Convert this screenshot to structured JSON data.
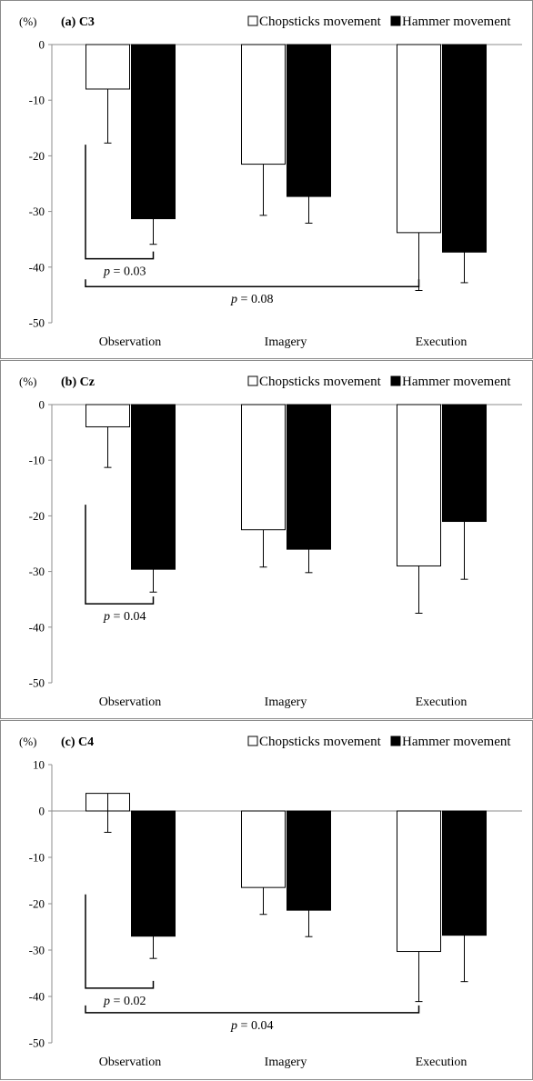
{
  "chart_data": [
    {
      "type": "bar",
      "title": "(a) C3",
      "ylabel": "(%)",
      "ylim": [
        -50,
        0
      ],
      "yticks": [
        0,
        -10,
        -20,
        -30,
        -40,
        -50
      ],
      "categories": [
        "Observation",
        "Imagery",
        "Execution"
      ],
      "series": [
        {
          "name": "Chopsticks movement",
          "color": "#ffffff",
          "values": [
            -8,
            -21.5,
            -33.8
          ],
          "error": [
            9.7,
            9.2,
            10.4
          ]
        },
        {
          "name": "Hammer movement",
          "color": "#000000",
          "values": [
            -31.3,
            -27.3,
            -37.3
          ],
          "error": [
            4.6,
            4.8,
            5.5
          ]
        }
      ],
      "grid": false,
      "legend": "top-right",
      "annotations": [
        {
          "label": "p",
          "text": "= 0.03",
          "from": "Observation",
          "to": "Observation",
          "y": -38.5
        },
        {
          "label": "p",
          "text": "= 0.08",
          "from": "Observation",
          "to": "Execution",
          "y": -43.5
        }
      ]
    },
    {
      "type": "bar",
      "title": "(b) Cz",
      "ylabel": "(%)",
      "ylim": [
        -50,
        0
      ],
      "yticks": [
        0,
        -10,
        -20,
        -30,
        -40,
        -50
      ],
      "categories": [
        "Observation",
        "Imagery",
        "Execution"
      ],
      "series": [
        {
          "name": "Chopsticks movement",
          "color": "#ffffff",
          "values": [
            -4,
            -22.5,
            -29
          ],
          "error": [
            7.3,
            6.7,
            8.5
          ]
        },
        {
          "name": "Hammer movement",
          "color": "#000000",
          "values": [
            -29.6,
            -26,
            -21
          ],
          "error": [
            4.1,
            4.2,
            10.4
          ]
        }
      ],
      "grid": false,
      "legend": "top-right",
      "annotations": [
        {
          "label": "p",
          "text": "= 0.04",
          "from": "Observation",
          "to": "Observation",
          "y": -35.8
        }
      ]
    },
    {
      "type": "bar",
      "title": "(c) C4",
      "ylabel": "(%)",
      "ylim": [
        -50,
        10
      ],
      "yticks": [
        10,
        0,
        -10,
        -20,
        -30,
        -40,
        -50
      ],
      "categories": [
        "Observation",
        "Imagery",
        "Execution"
      ],
      "series": [
        {
          "name": "Chopsticks movement",
          "color": "#ffffff",
          "values": [
            3.8,
            -16.5,
            -30.3
          ],
          "error": [
            8.4,
            5.8,
            10.8
          ]
        },
        {
          "name": "Hammer movement",
          "color": "#000000",
          "values": [
            -27,
            -21.4,
            -26.8
          ],
          "error": [
            4.8,
            5.7,
            10
          ]
        }
      ],
      "grid": false,
      "legend": "top-right",
      "annotations": [
        {
          "label": "p",
          "text": "= 0.02",
          "from": "Observation",
          "to": "Observation",
          "y": -38.2
        },
        {
          "label": "p",
          "text": "= 0.04",
          "from": "Observation",
          "to": "Execution",
          "y": -43.5
        }
      ]
    }
  ]
}
